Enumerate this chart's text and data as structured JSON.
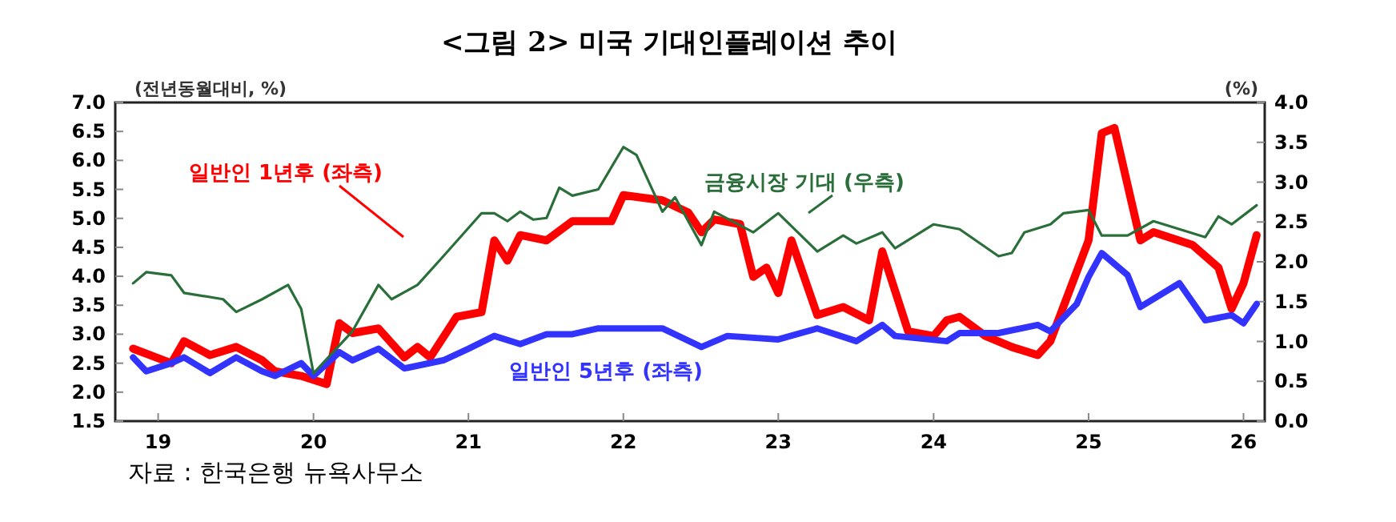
{
  "chart_data": {
    "type": "line",
    "title": "<그림 2> 미국 기대인플레이션 추이",
    "ylabel": "(전년동월대비, %)",
    "y2label": "(%)",
    "annotations": [
      "자료 : 한국은행 뉴욕사무소"
    ],
    "xlim": [
      "2018-11-20",
      "2026-04-20"
    ],
    "xticks": [
      {
        "value": "2019-03",
        "label": "19"
      },
      {
        "value": "2020-03",
        "label": "20"
      },
      {
        "value": "2021-03",
        "label": "21"
      },
      {
        "value": "2022-03",
        "label": "22"
      },
      {
        "value": "2023-03",
        "label": "23"
      },
      {
        "value": "2024-03",
        "label": "24"
      },
      {
        "value": "2025-03",
        "label": "25"
      },
      {
        "value": "2026-03",
        "label": "26"
      }
    ],
    "ylim": [
      1.5,
      7
    ],
    "yticks": [
      {
        "value": 1.5,
        "label": "1.5"
      },
      {
        "value": 2,
        "label": "2.0"
      },
      {
        "value": 2.5,
        "label": "2.5"
      },
      {
        "value": 3,
        "label": "3.0"
      },
      {
        "value": 3.5,
        "label": "3.5"
      },
      {
        "value": 4,
        "label": "4.0"
      },
      {
        "value": 4.5,
        "label": "4.5"
      },
      {
        "value": 5,
        "label": "5.0"
      },
      {
        "value": 5.5,
        "label": "5.5"
      },
      {
        "value": 6,
        "label": "6.0"
      },
      {
        "value": 6.5,
        "label": "6.5"
      },
      {
        "value": 7,
        "label": "7.0"
      }
    ],
    "y2lim": [
      0,
      4
    ],
    "y2ticks": [
      {
        "value": 0,
        "label": "0.0"
      },
      {
        "value": 0.5,
        "label": "0.5"
      },
      {
        "value": 1,
        "label": "1.0"
      },
      {
        "value": 1.5,
        "label": "1.5"
      },
      {
        "value": 2,
        "label": "2.0"
      },
      {
        "value": 2.5,
        "label": "2.5"
      },
      {
        "value": 3,
        "label": "3.0"
      },
      {
        "value": 3.5,
        "label": "3.5"
      },
      {
        "value": 4,
        "label": "4.0"
      }
    ],
    "grid": false,
    "marker": "none",
    "line_style": "solid",
    "series": [
      {
        "name": "일반인 1년후 (좌측)",
        "color": "#ff0000",
        "x": [
          "2019-01",
          "2019-04",
          "2019-05",
          "2019-07",
          "2019-09",
          "2019-11",
          "2019-12",
          "2020-02",
          "2020-04",
          "2020-05",
          "2020-06",
          "2020-08",
          "2020-10",
          "2020-11",
          "2020-12",
          "2021-02",
          "2021-04",
          "2021-05",
          "2021-06",
          "2021-07",
          "2021-09",
          "2021-11",
          "2022-02",
          "2022-03",
          "2022-06",
          "2022-08",
          "2022-09",
          "2022-10",
          "2022-12",
          "2023-01",
          "2023-02",
          "2023-03",
          "2023-04",
          "2023-06",
          "2023-08",
          "2023-10",
          "2023-11",
          "2024-01",
          "2024-03",
          "2024-04",
          "2024-05",
          "2024-07",
          "2024-09",
          "2024-11",
          "2024-12",
          "2025-03",
          "2025-04",
          "2025-05",
          "2025-07",
          "2025-08",
          "2025-11",
          "2026-01",
          "2026-02",
          "2026-03",
          "2026-04"
        ],
        "values": [
          2.75,
          2.5,
          2.88,
          2.64,
          2.78,
          2.55,
          2.36,
          2.28,
          2.14,
          3.19,
          3.02,
          3.1,
          2.6,
          2.78,
          2.6,
          3.3,
          3.38,
          4.62,
          4.27,
          4.71,
          4.62,
          4.95,
          4.95,
          5.4,
          5.31,
          5.1,
          4.76,
          4.98,
          4.9,
          3.99,
          4.15,
          3.71,
          4.62,
          3.33,
          3.47,
          3.24,
          4.43,
          3.05,
          2.97,
          3.24,
          3.3,
          2.97,
          2.78,
          2.64,
          2.88,
          4.62,
          6.47,
          6.56,
          4.62,
          4.76,
          4.54,
          4.15,
          3.44,
          3.88,
          4.71
        ]
      },
      {
        "name": "일반인 5년후 (좌측)",
        "color": "#3333ff",
        "x": [
          "2019-01",
          "2019-02",
          "2019-04",
          "2019-05",
          "2019-07",
          "2019-09",
          "2019-11",
          "2019-12",
          "2020-02",
          "2020-03",
          "2020-05",
          "2020-06",
          "2020-08",
          "2020-10",
          "2021-01",
          "2021-03",
          "2021-05",
          "2021-07",
          "2021-09",
          "2021-11",
          "2022-01",
          "2022-06",
          "2022-09",
          "2022-11",
          "2023-03",
          "2023-06",
          "2023-09",
          "2023-11",
          "2023-12",
          "2024-04",
          "2024-05",
          "2024-08",
          "2024-11",
          "2024-12",
          "2025-02",
          "2025-03",
          "2025-04",
          "2025-06",
          "2025-07",
          "2025-10",
          "2025-12",
          "2026-02",
          "2026-03",
          "2026-04"
        ],
        "values": [
          2.6,
          2.36,
          2.5,
          2.6,
          2.33,
          2.6,
          2.36,
          2.28,
          2.5,
          2.28,
          2.69,
          2.55,
          2.75,
          2.41,
          2.55,
          2.75,
          2.97,
          2.83,
          3.0,
          3.0,
          3.1,
          3.1,
          2.78,
          2.97,
          2.91,
          3.1,
          2.88,
          3.16,
          2.97,
          2.88,
          3.02,
          3.02,
          3.16,
          3.05,
          3.52,
          3.99,
          4.4,
          4.02,
          3.47,
          3.88,
          3.24,
          3.33,
          3.19,
          3.52
        ]
      },
      {
        "name": "금융시장 기대 (우측)",
        "color": "#2a6e3a",
        "axis": "y2",
        "x": [
          "2019-01",
          "2019-02",
          "2019-04",
          "2019-05",
          "2019-08",
          "2019-09",
          "2019-11",
          "2020-01",
          "2020-02",
          "2020-03",
          "2020-06",
          "2020-08",
          "2020-09",
          "2020-11",
          "2021-01",
          "2021-04",
          "2021-05",
          "2021-06",
          "2021-07",
          "2021-08",
          "2021-09",
          "2021-10",
          "2021-11",
          "2022-01",
          "2022-03",
          "2022-04",
          "2022-06",
          "2022-07",
          "2022-09",
          "2022-10",
          "2023-01",
          "2023-03",
          "2023-06",
          "2023-08",
          "2023-09",
          "2023-11",
          "2023-12",
          "2024-03",
          "2024-05",
          "2024-08",
          "2024-09",
          "2024-10",
          "2024-12",
          "2025-01",
          "2025-03",
          "2025-04",
          "2025-06",
          "2025-08",
          "2025-12",
          "2026-01",
          "2026-02",
          "2026-04"
        ],
        "values": [
          1.73,
          1.87,
          1.83,
          1.61,
          1.53,
          1.37,
          1.53,
          1.71,
          1.41,
          0.6,
          1.13,
          1.71,
          1.53,
          1.71,
          2.07,
          2.61,
          2.61,
          2.51,
          2.63,
          2.53,
          2.55,
          2.93,
          2.83,
          2.91,
          3.44,
          3.34,
          2.63,
          2.81,
          2.21,
          2.63,
          2.37,
          2.61,
          2.13,
          2.33,
          2.23,
          2.37,
          2.17,
          2.47,
          2.41,
          2.07,
          2.11,
          2.37,
          2.47,
          2.61,
          2.65,
          2.33,
          2.33,
          2.51,
          2.31,
          2.57,
          2.47,
          2.71
        ]
      }
    ]
  }
}
